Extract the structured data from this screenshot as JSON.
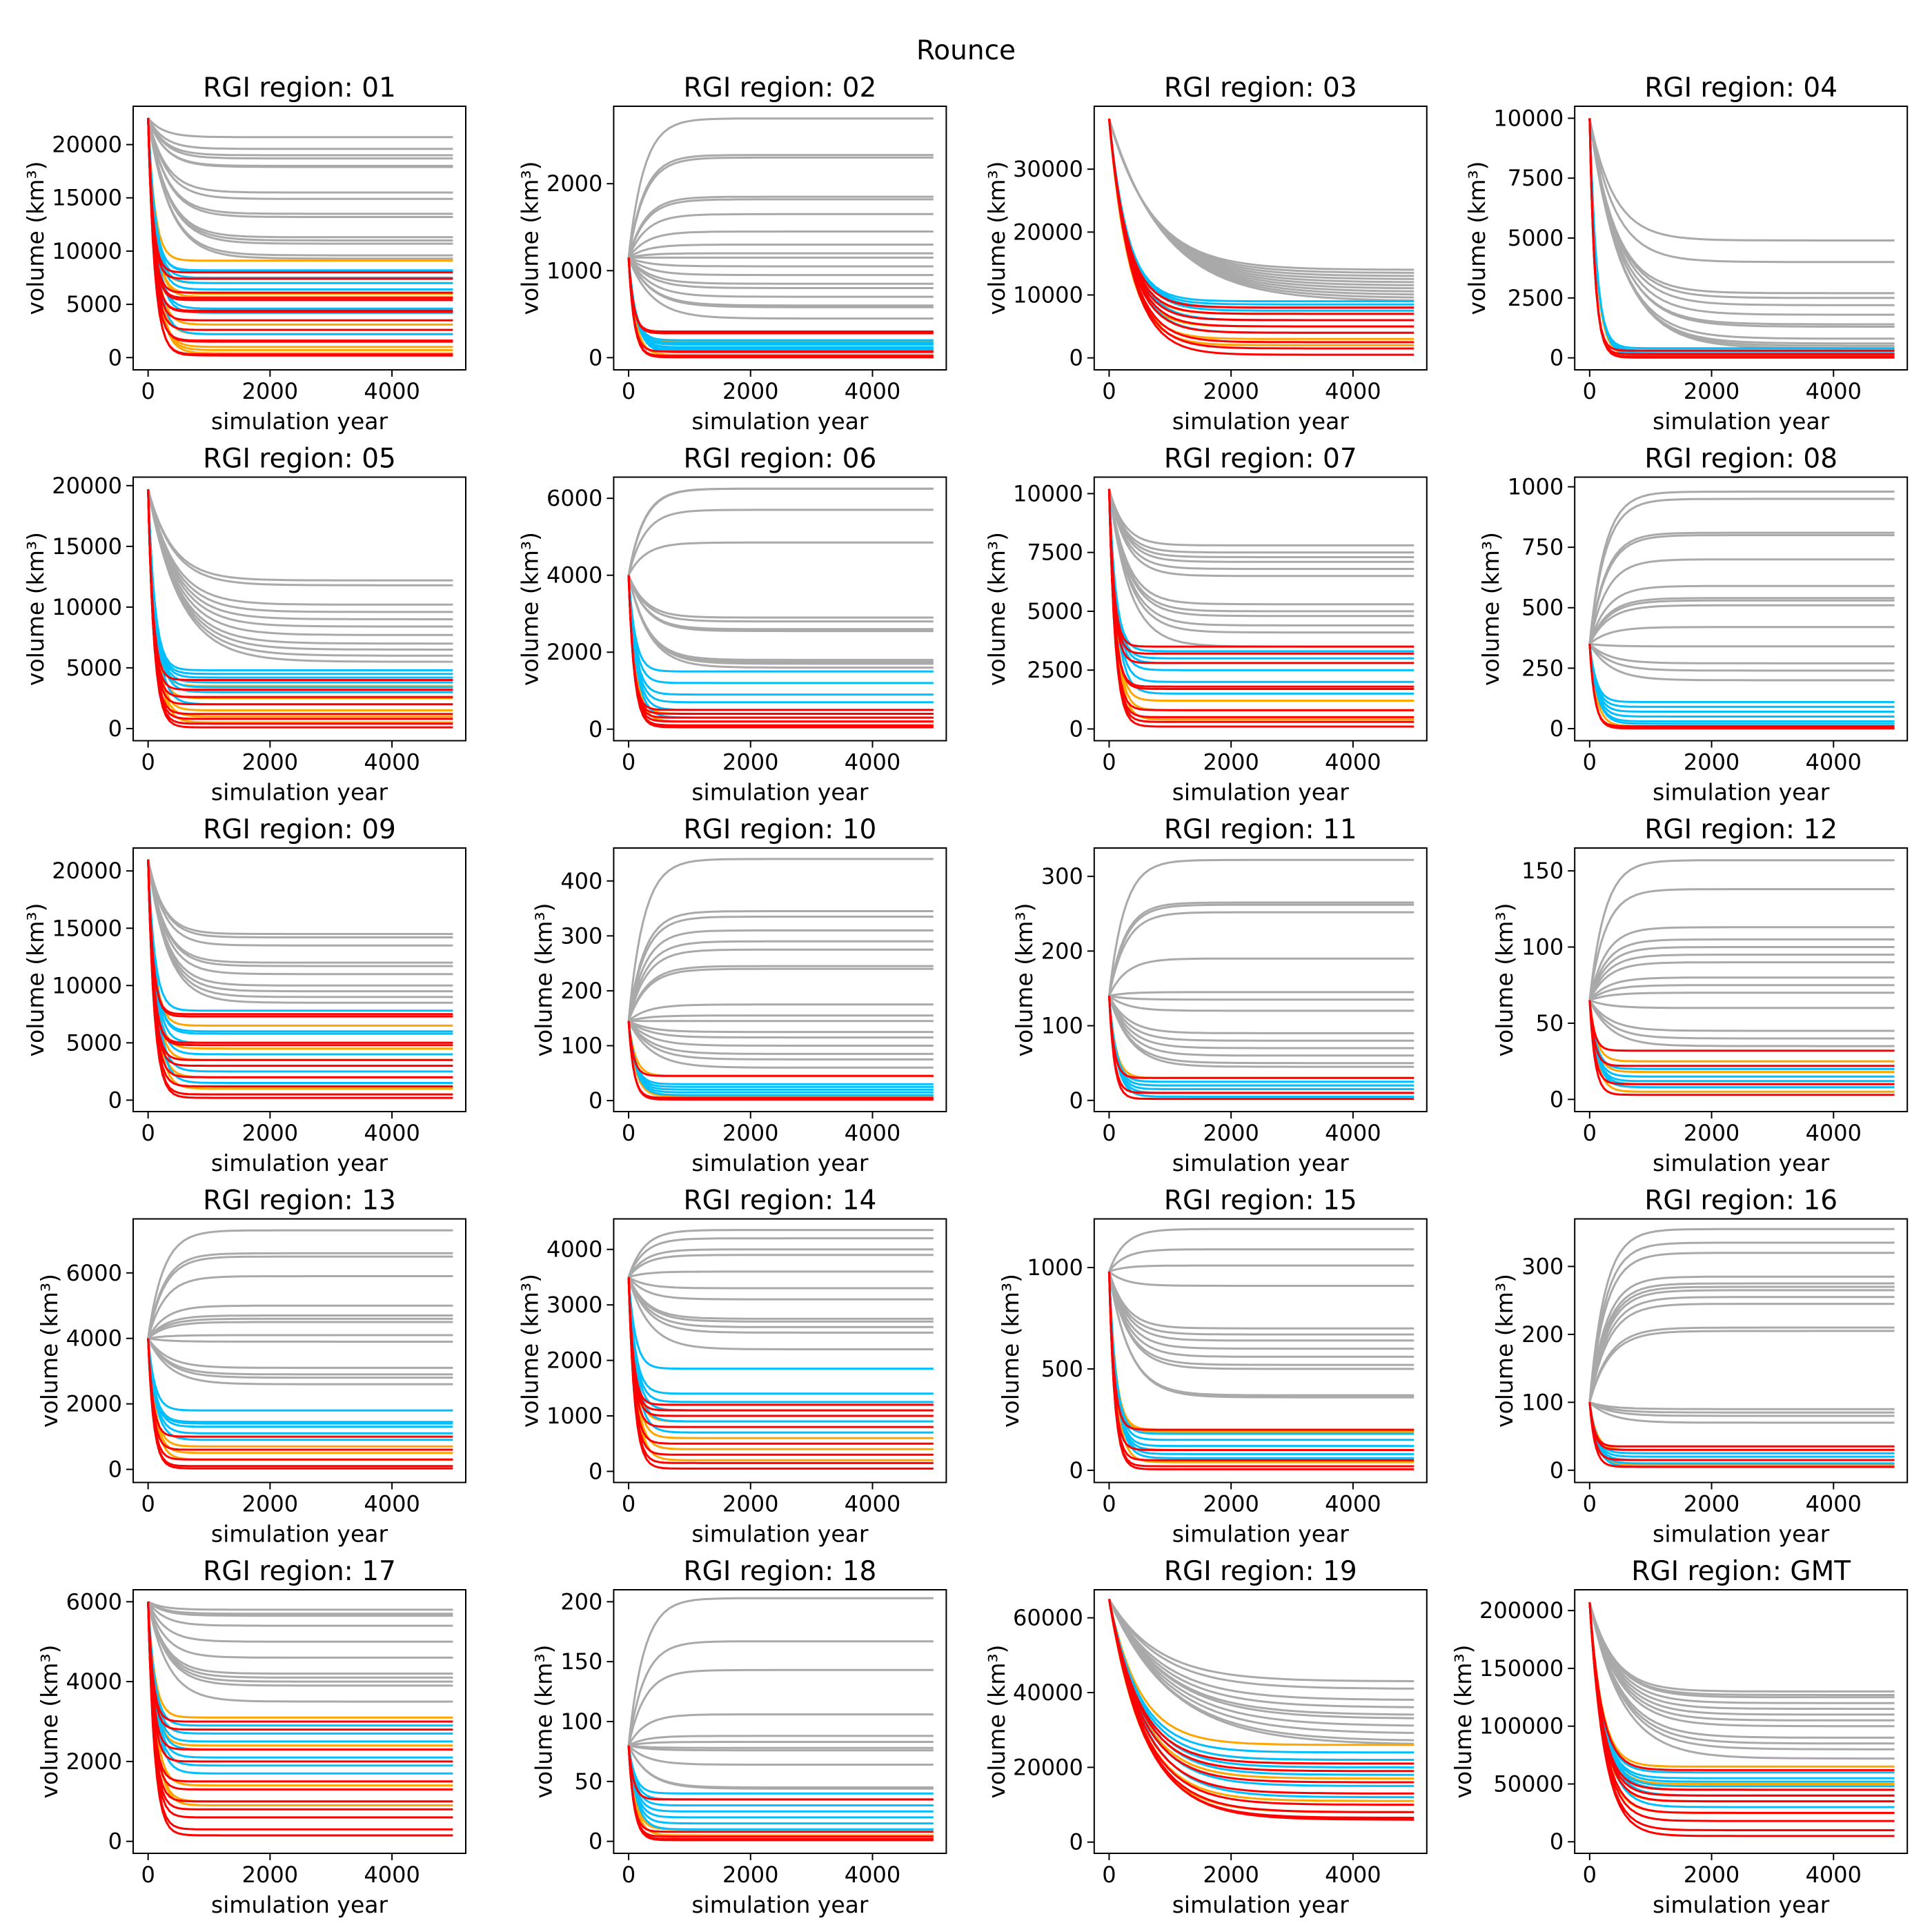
{
  "chart_data": {
    "type": "line",
    "title": "Rounce",
    "xlabel": "simulation year",
    "ylabel": "volume (km³)",
    "xlim": [
      -245,
      5210
    ],
    "xticks": [
      0,
      2000,
      4000
    ],
    "grid": false,
    "colors": {
      "gray": "#a9a9a9",
      "blue": "#00bfff",
      "orange": "#ffa500",
      "red": "#ff0000"
    },
    "panels": [
      {
        "title": "RGI region: 01",
        "ylim": [
          -1150,
          23600
        ],
        "yticks": [
          0,
          5000,
          10000,
          15000,
          20000
        ],
        "start": 22500,
        "gray": [
          20700,
          19600,
          19000,
          18700,
          18000,
          17900,
          15500,
          14900,
          13500,
          13200,
          11300,
          11000,
          10700,
          9600,
          9300
        ],
        "blue": [
          8200,
          8100,
          7500,
          7000,
          6400,
          4600,
          4200,
          2200
        ],
        "orange": [
          9100,
          7000,
          6000,
          5700,
          3100,
          2200,
          1000,
          700,
          400
        ],
        "red": [
          8000,
          7400,
          6100,
          5600,
          5400,
          4400,
          4300,
          3500,
          2600,
          1600,
          1500,
          300,
          200
        ]
      },
      {
        "title": "RGI region: 02",
        "ylim": [
          -140,
          2890
        ],
        "yticks": [
          0,
          1000,
          2000
        ],
        "start": 1150,
        "gray": [
          2750,
          2330,
          2300,
          1850,
          1820,
          1650,
          1450,
          1300,
          1200,
          1150,
          1050,
          950,
          850,
          800,
          700,
          600,
          580,
          450
        ],
        "blue": [
          200,
          170,
          150,
          120,
          100,
          80,
          60
        ],
        "orange": [
          180,
          30
        ],
        "red": [
          300,
          280,
          70,
          20,
          5
        ]
      },
      {
        "title": "RGI region: 03",
        "ylim": [
          -1900,
          40000
        ],
        "yticks": [
          0,
          10000,
          20000,
          30000
        ],
        "start": 38000,
        "gray": [
          14000,
          13500,
          13000,
          12500,
          12000,
          11500,
          11000,
          10500,
          10000,
          9500,
          9000
        ],
        "blue": [
          9000,
          8500,
          8000,
          7500,
          6000,
          4000
        ],
        "orange": [
          7000,
          5000,
          3000,
          2000
        ],
        "red": [
          8000,
          7000,
          6000,
          5000,
          4000,
          2500,
          1500,
          500
        ]
      },
      {
        "title": "RGI region: 04",
        "ylim": [
          -500,
          10500
        ],
        "yticks": [
          0,
          2500,
          5000,
          7500,
          10000
        ],
        "start": 10000,
        "gray": [
          4900,
          4000,
          2700,
          2500,
          2200,
          1800,
          1400,
          1300,
          800,
          600,
          500,
          400
        ],
        "blue": [
          400,
          300,
          200,
          100
        ],
        "orange": [
          300,
          100
        ],
        "red": [
          300,
          150,
          50,
          10
        ]
      },
      {
        "title": "RGI region: 05",
        "ylim": [
          -1000,
          20700
        ],
        "yticks": [
          0,
          5000,
          10000,
          15000,
          20000
        ],
        "start": 19700,
        "gray": [
          12200,
          11800,
          10200,
          9600,
          9000,
          8400,
          7700,
          7000,
          6500,
          6000,
          5500
        ],
        "blue": [
          4800,
          4500,
          4200,
          3800,
          3400,
          3000,
          2000
        ],
        "orange": [
          3500,
          2500,
          1500,
          1000,
          500
        ],
        "red": [
          4000,
          3200,
          2600,
          2000,
          1200,
          800,
          400,
          100
        ]
      },
      {
        "title": "RGI region: 06",
        "ylim": [
          -300,
          6550
        ],
        "yticks": [
          0,
          2000,
          4000,
          6000
        ],
        "start": 4000,
        "gray": [
          6250,
          6250,
          5700,
          4850,
          2900,
          2800,
          2600,
          2550,
          1800,
          1750,
          1700,
          1600
        ],
        "blue": [
          1500,
          1200,
          900,
          700,
          500,
          300
        ],
        "orange": [
          400,
          200
        ],
        "red": [
          500,
          400,
          300,
          200,
          100,
          50
        ]
      },
      {
        "title": "RGI region: 07",
        "ylim": [
          -500,
          10700
        ],
        "yticks": [
          0,
          2500,
          5000,
          7500,
          10000
        ],
        "start": 10200,
        "gray": [
          7800,
          7500,
          7300,
          7100,
          6800,
          6500,
          5300,
          5000,
          4800,
          4400,
          4100,
          3500
        ],
        "blue": [
          3300,
          3000,
          2800,
          2500,
          2000,
          1500
        ],
        "orange": [
          1200,
          800,
          400
        ],
        "red": [
          3500,
          3200,
          2800,
          1800,
          1700,
          800,
          500,
          300,
          100
        ]
      },
      {
        "title": "RGI region: 08",
        "ylim": [
          -50,
          1040
        ],
        "yticks": [
          0,
          250,
          500,
          750,
          1000
        ],
        "start": 350,
        "gray": [
          980,
          950,
          810,
          800,
          700,
          590,
          540,
          530,
          510,
          420,
          340,
          270,
          240,
          200
        ],
        "blue": [
          110,
          90,
          70,
          50,
          30,
          20
        ],
        "orange": [
          10
        ],
        "red": [
          10,
          5,
          1
        ]
      },
      {
        "title": "RGI region: 09",
        "ylim": [
          -1000,
          22000
        ],
        "yticks": [
          0,
          5000,
          10000,
          15000,
          20000
        ],
        "start": 21000,
        "gray": [
          14500,
          14200,
          13500,
          12000,
          11700,
          11000,
          10000,
          9500,
          9000,
          8500
        ],
        "blue": [
          7800,
          6000,
          5800,
          5000,
          4000,
          2500,
          1500
        ],
        "orange": [
          6500,
          4500,
          3500,
          2000,
          1000
        ],
        "red": [
          7500,
          7300,
          5000,
          4800,
          3500,
          3000,
          2000,
          1200,
          500,
          200
        ]
      },
      {
        "title": "RGI region: 10",
        "ylim": [
          -20,
          460
        ],
        "yticks": [
          0,
          100,
          200,
          300,
          400
        ],
        "start": 145,
        "gray": [
          440,
          345,
          335,
          310,
          290,
          275,
          245,
          240,
          175,
          155,
          145,
          125,
          115,
          100,
          85,
          75,
          60
        ],
        "blue": [
          30,
          25,
          20,
          15,
          10
        ],
        "orange": [
          45,
          8
        ],
        "red": [
          45,
          5,
          2
        ]
      },
      {
        "title": "RGI region: 11",
        "ylim": [
          -15,
          338
        ],
        "yticks": [
          0,
          100,
          200,
          300
        ],
        "start": 140,
        "gray": [
          322,
          265,
          262,
          252,
          190,
          145,
          135,
          120,
          90,
          80,
          70,
          60,
          50,
          45
        ],
        "blue": [
          25,
          20,
          15,
          10,
          5
        ],
        "orange": [
          30,
          20
        ],
        "red": [
          30,
          10,
          2
        ]
      },
      {
        "title": "RGI region: 12",
        "ylim": [
          -8,
          165
        ],
        "yticks": [
          0,
          50,
          100,
          150
        ],
        "start": 65,
        "gray": [
          157,
          138,
          113,
          105,
          100,
          95,
          90,
          80,
          75,
          70,
          60,
          45,
          40,
          35
        ],
        "blue": [
          20,
          15,
          12,
          10,
          8
        ],
        "orange": [
          25,
          18,
          5
        ],
        "red": [
          32,
          22,
          10,
          3
        ]
      },
      {
        "title": "RGI region: 13",
        "ylim": [
          -400,
          7650
        ],
        "yticks": [
          0,
          2000,
          4000,
          6000
        ],
        "start": 4000,
        "gray": [
          7300,
          6600,
          6500,
          5900,
          5000,
          4700,
          4600,
          4500,
          4100,
          3900,
          3100,
          2900,
          2800,
          2600
        ],
        "blue": [
          1800,
          1450,
          1400,
          1300,
          1100,
          900
        ],
        "orange": [
          700,
          500,
          300
        ],
        "red": [
          1000,
          600,
          300,
          100,
          30
        ]
      },
      {
        "title": "RGI region: 14",
        "ylim": [
          -200,
          4550
        ],
        "yticks": [
          0,
          1000,
          2000,
          3000,
          4000
        ],
        "start": 3500,
        "gray": [
          4350,
          4200,
          4000,
          3900,
          3600,
          3300,
          3100,
          2750,
          2700,
          2600,
          2500,
          2200
        ],
        "blue": [
          1850,
          1400,
          1250,
          1100,
          900,
          700
        ],
        "orange": [
          900,
          600,
          400,
          200
        ],
        "red": [
          1200,
          1100,
          1000,
          800,
          500,
          300,
          150,
          50
        ]
      },
      {
        "title": "RGI region: 15",
        "ylim": [
          -60,
          1240
        ],
        "yticks": [
          0,
          500,
          1000
        ],
        "start": 980,
        "gray": [
          1190,
          1090,
          1010,
          910,
          700,
          670,
          640,
          600,
          560,
          520,
          500,
          370,
          360
        ],
        "blue": [
          180,
          150,
          120,
          100,
          80,
          60
        ],
        "orange": [
          200,
          190,
          40
        ],
        "red": [
          200,
          100,
          50,
          20,
          5
        ]
      },
      {
        "title": "RGI region: 16",
        "ylim": [
          -18,
          370
        ],
        "yticks": [
          0,
          100,
          200,
          300
        ],
        "start": 100,
        "gray": [
          355,
          335,
          320,
          285,
          275,
          270,
          265,
          255,
          245,
          210,
          205,
          90,
          85,
          80,
          70
        ],
        "blue": [
          25,
          20,
          15,
          10,
          5
        ],
        "orange": [
          30,
          8
        ],
        "red": [
          35,
          30,
          15,
          5
        ]
      },
      {
        "title": "RGI region: 17",
        "ylim": [
          -300,
          6300
        ],
        "yticks": [
          0,
          2000,
          4000,
          6000
        ],
        "start": 6000,
        "gray": [
          5800,
          5700,
          5650,
          5400,
          5000,
          4600,
          4200,
          4100,
          4000,
          3900,
          3500
        ],
        "blue": [
          2900,
          2700,
          2500,
          2300,
          2100,
          1900,
          1700
        ],
        "orange": [
          3100,
          2400,
          1400,
          1000,
          900
        ],
        "red": [
          3000,
          2800,
          2300,
          2000,
          1500,
          1300,
          1000,
          800,
          600,
          300,
          150
        ]
      },
      {
        "title": "RGI region: 18",
        "ylim": [
          -10,
          210
        ],
        "yticks": [
          0,
          50,
          100,
          150,
          200
        ],
        "start": 80,
        "gray": [
          203,
          167,
          143,
          106,
          88,
          83,
          78,
          76,
          64,
          45,
          44
        ],
        "blue": [
          40,
          35,
          30,
          25,
          20,
          15,
          10
        ],
        "orange": [
          10,
          5
        ],
        "red": [
          35,
          8,
          4,
          2,
          1
        ]
      },
      {
        "title": "RGI region: 19",
        "ylim": [
          -3000,
          67500
        ],
        "yticks": [
          0,
          20000,
          40000,
          60000
        ],
        "start": 65000,
        "gray": [
          43000,
          41000,
          38000,
          36000,
          34000,
          33000,
          31000,
          29000,
          27000,
          26000
        ],
        "blue": [
          24000,
          22000,
          20000,
          18000,
          15000,
          12000
        ],
        "orange": [
          26000,
          22000,
          17000,
          11000,
          8000
        ],
        "red": [
          21000,
          19000,
          16000,
          13000,
          10000,
          8000,
          6500,
          6000
        ]
      },
      {
        "title": "RGI region: GMT",
        "ylim": [
          -10000,
          218000
        ],
        "yticks": [
          0,
          50000,
          100000,
          150000,
          200000
        ],
        "start": 207000,
        "gray": [
          130000,
          127000,
          125000,
          120000,
          115000,
          110000,
          105000,
          100000,
          90000,
          85000,
          80000,
          72000
        ],
        "blue": [
          60000,
          55000,
          52000,
          48000,
          45000,
          40000,
          30000
        ],
        "orange": [
          65000,
          50000,
          35000,
          25000
        ],
        "red": [
          62000,
          45000,
          40000,
          35000,
          25000,
          18000,
          10000,
          5000
        ]
      }
    ]
  }
}
